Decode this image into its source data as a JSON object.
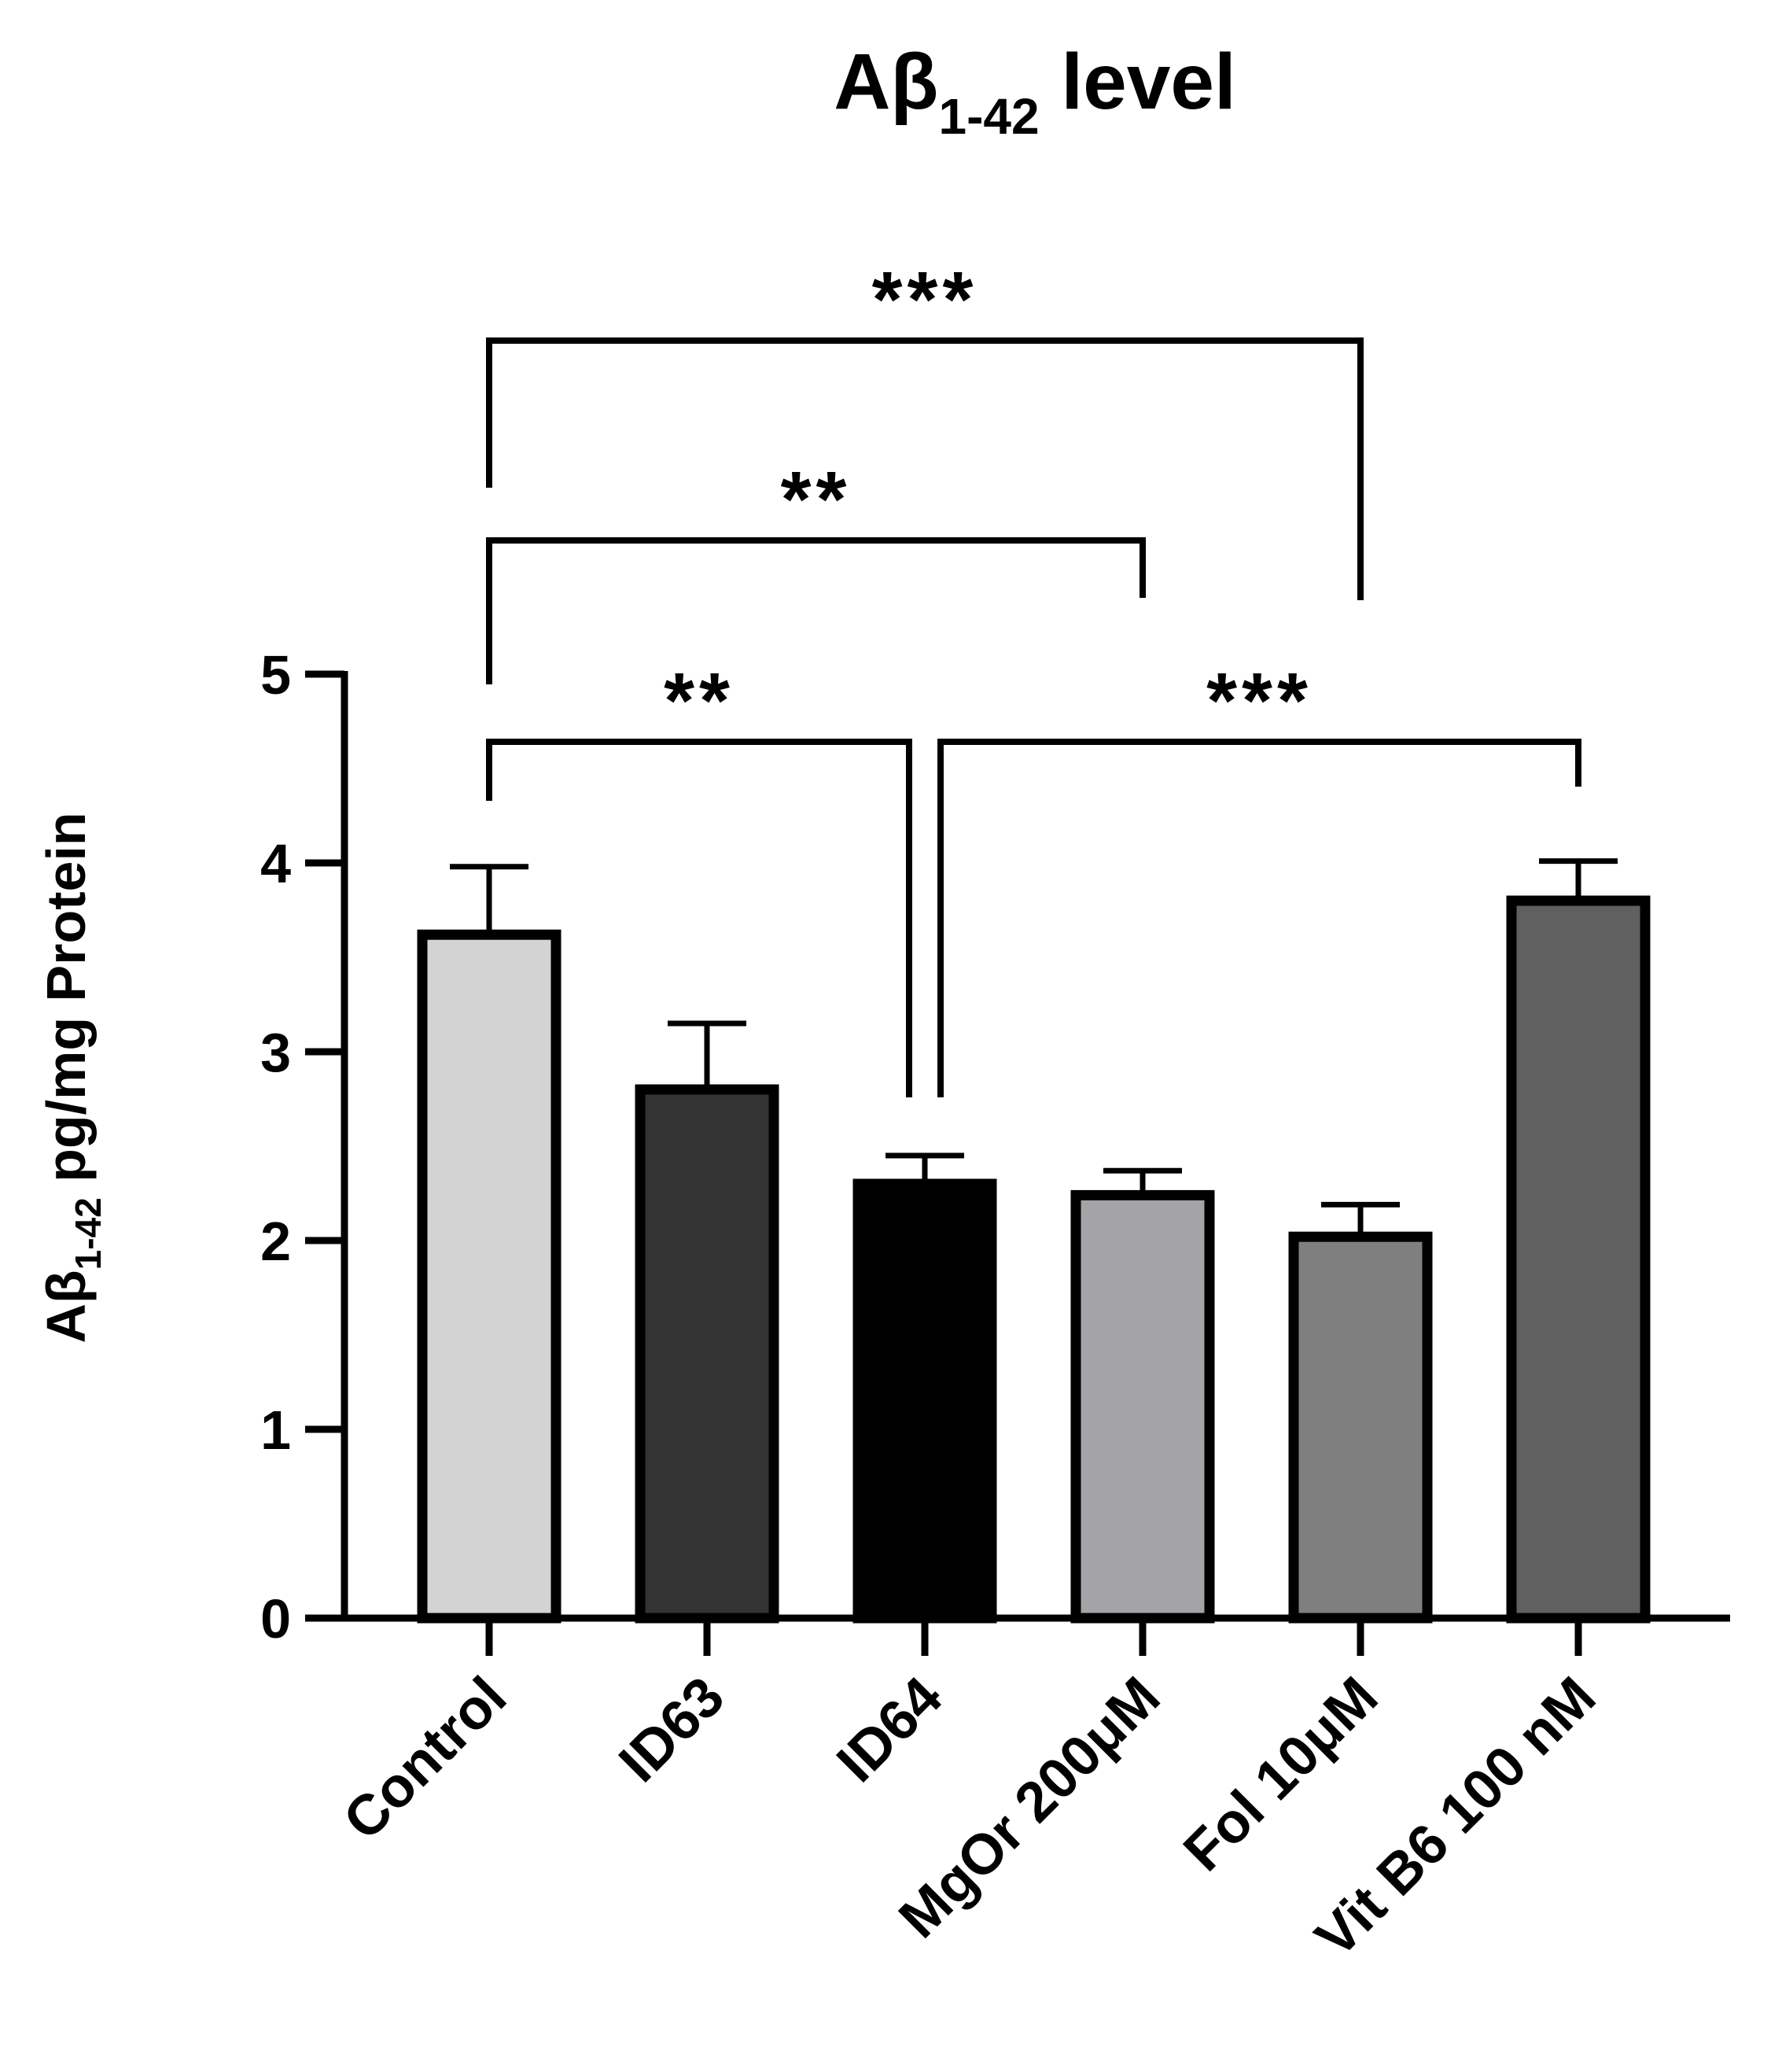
{
  "chart_data": {
    "type": "bar",
    "title": {
      "main": "Aβ",
      "sub": "1-42",
      "rest": " level"
    },
    "ylabel": {
      "main": "Aβ",
      "sub": "1-42",
      "rest": " pg/mg Protein"
    },
    "xlabel": "",
    "ylim": [
      0,
      5
    ],
    "yticks": [
      0,
      1,
      2,
      3,
      4,
      5
    ],
    "categories": [
      "Control",
      "ID63",
      "ID64",
      "MgOr 200μM",
      "Fol 10μM",
      "Vit B6 100 nM"
    ],
    "values": [
      3.62,
      2.8,
      2.3,
      2.24,
      2.02,
      3.8
    ],
    "errors": [
      0.36,
      0.35,
      0.15,
      0.13,
      0.17,
      0.21
    ],
    "bar_colors": [
      "#d3d3d3",
      "#333333",
      "#000000",
      "#a4a4a8",
      "#7f7f7f",
      "#606060"
    ],
    "significance": [
      {
        "from": 0,
        "to": 2,
        "label": "**"
      },
      {
        "from": 2,
        "to": 5,
        "label": "***"
      },
      {
        "from": 0,
        "to": 3,
        "label": "**"
      },
      {
        "from": 0,
        "to": 4,
        "label": "***"
      }
    ]
  }
}
